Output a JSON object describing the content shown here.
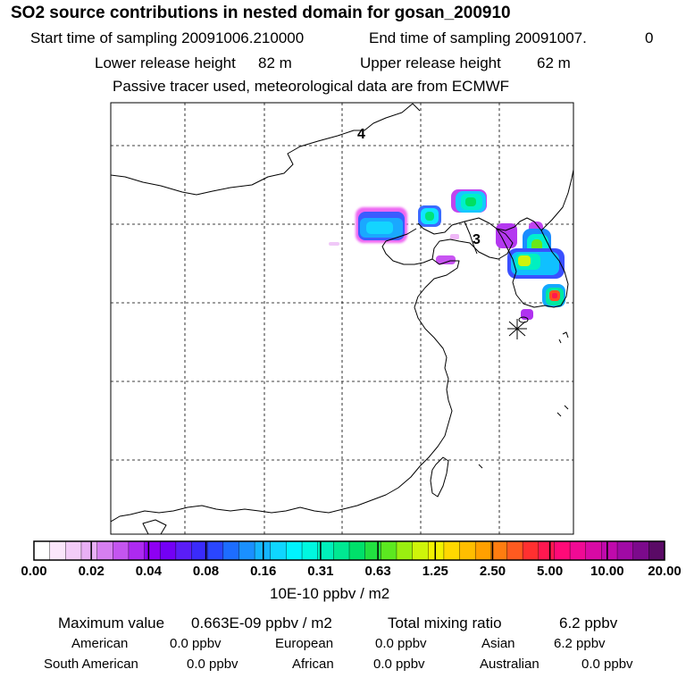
{
  "title": "SO2 source contributions in nested domain for gosan_200910",
  "header": {
    "start_label": "Start time of sampling 20091006.210000",
    "end_label": "End time of sampling 20091007.",
    "end_value": "0",
    "lower_label": "Lower release height",
    "lower_value": "82 m",
    "upper_label": "Upper release height",
    "upper_value": "62 m",
    "tracer_note": "Passive tracer used, meteorological data are from ECMWF"
  },
  "map": {
    "labels": [
      "4",
      "3"
    ],
    "colors": {
      "coast": "#000000",
      "grid": "#000000",
      "receptor": "#000000"
    }
  },
  "colorbar": {
    "units": "10E-10 ppbv / m2",
    "ticks": [
      "0.00",
      "0.02",
      "0.04",
      "0.08",
      "0.16",
      "0.31",
      "0.63",
      "1.25",
      "2.50",
      "5.00",
      "10.00",
      "20.00"
    ],
    "colors": [
      "#ffffff",
      "#fbe6fb",
      "#f3ccf8",
      "#e9b0f5",
      "#d67ff0",
      "#c455ef",
      "#ad2af0",
      "#8e00f2",
      "#7300f5",
      "#5a1df7",
      "#3a2bfb",
      "#2a46ff",
      "#1d6dff",
      "#1a90ff",
      "#14b5ff",
      "#0fd6ff",
      "#00f3ff",
      "#00f7e0",
      "#00f0bb",
      "#00e892",
      "#00e06a",
      "#22e040",
      "#5ce820",
      "#9aef10",
      "#cef40a",
      "#f2f200",
      "#ffd800",
      "#ffbe00",
      "#ffa000",
      "#ff7d10",
      "#ff5a20",
      "#ff3030",
      "#ff1850",
      "#ff0a78",
      "#f00a95",
      "#d80aa5",
      "#c00aac",
      "#a00aa5",
      "#7c0a8c",
      "#5a0a66"
    ]
  },
  "summary": {
    "max_label": "Maximum value",
    "max_value": "0.663E-09 ppbv / m2",
    "total_label": "Total mixing ratio",
    "total_value": "6.2 ppbv",
    "regions_row1": [
      {
        "name": "American",
        "value": "0.0 ppbv"
      },
      {
        "name": "European",
        "value": "0.0 ppbv"
      },
      {
        "name": "Asian",
        "value": "6.2 ppbv"
      }
    ],
    "regions_row2": [
      {
        "name": "South American",
        "value": "0.0 ppbv"
      },
      {
        "name": "African",
        "value": "0.0 ppbv"
      },
      {
        "name": "Australian",
        "value": "0.0 ppbv"
      }
    ]
  }
}
